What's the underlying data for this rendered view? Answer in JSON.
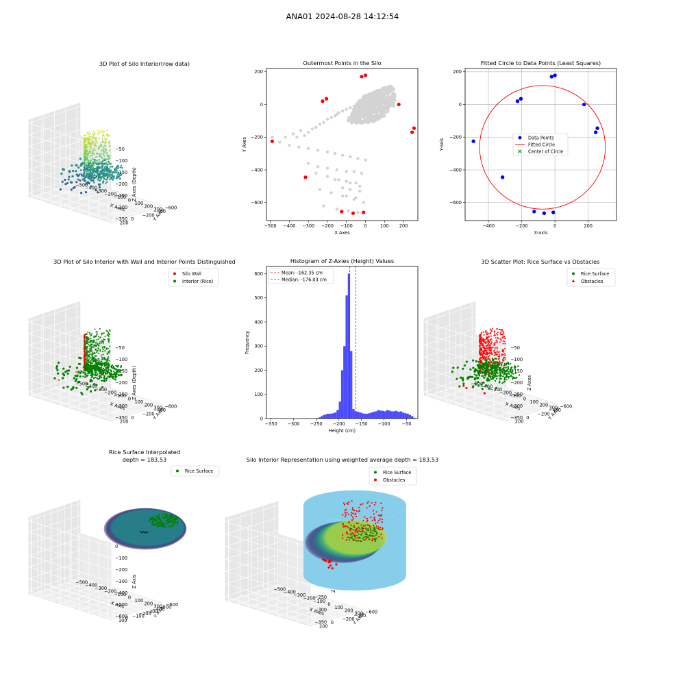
{
  "suptitle": "ANA01 2024-08-28 14:12:54",
  "colors": {
    "wall_points": "#ff0000",
    "interior_points": "#008000",
    "gray_points": "#d3d3d3",
    "blue_points": "#0000ff",
    "histogram": "#0000ff",
    "cylinder": "#87ceeb",
    "viridis_low": "#440154",
    "viridis_mid": "#21918c",
    "viridis_high": "#fde725"
  },
  "chart_data": [
    {
      "id": "raw3d",
      "type": "scatter3d",
      "title": "3D Plot of Silo Interior(row data)",
      "xlabel": "X Axes",
      "ylabel": "Y Axes",
      "zlabel": "Z Axes (Depth)",
      "xticks": [
        "−500",
        "−400",
        "−300",
        "−200",
        "−100",
        "0",
        "100",
        "200",
        "300"
      ],
      "yticks": [
        "200",
        "0",
        "−200",
        "−400",
        "−600"
      ],
      "zticks": [
        "−50",
        "−100",
        "−150",
        "−200",
        "−250",
        "−300",
        "−350"
      ],
      "colormap": "viridis",
      "xlim": [
        -500,
        300
      ],
      "ylim": [
        -650,
        220
      ],
      "zlim": [
        -370,
        -30
      ]
    },
    {
      "id": "outer",
      "type": "scatter",
      "title": "Outermost Points in the Silo",
      "xlabel": "X Axes",
      "ylabel": "Y Axes",
      "xlim": [
        -520,
        275
      ],
      "ylim": [
        -710,
        220
      ],
      "xticks": [
        -500,
        -400,
        -300,
        -200,
        -100,
        0,
        100,
        200
      ],
      "yticks": [
        200,
        0,
        -200,
        -400,
        -600
      ],
      "series": [
        {
          "role": "all points (gray)",
          "x": [
            -490,
            -450,
            -420,
            -380,
            -360,
            -340,
            -320,
            -300,
            -280,
            -260,
            -240,
            -220,
            -200,
            -180,
            -160,
            -150,
            -140,
            -120,
            -100,
            -80,
            -60,
            -40,
            -20,
            -400,
            -350,
            -300,
            -250,
            -200,
            -160,
            -120,
            -80,
            -40,
            0,
            -300,
            -250,
            -200,
            -150,
            -100,
            -60,
            -20,
            -260,
            -200,
            -140,
            -80,
            -30,
            -240,
            -180,
            -120,
            -60,
            -10,
            -220,
            -150,
            -90,
            -40,
            -160,
            -100,
            -50,
            -120,
            -80,
            -30,
            -100,
            -50
          ],
          "y": [
            -200,
            -230,
            -200,
            -180,
            -200,
            -160,
            -190,
            -170,
            -150,
            -140,
            -120,
            -110,
            -90,
            -80,
            -70,
            -60,
            -50,
            -40,
            -30,
            -20,
            -10,
            0,
            10,
            -250,
            -260,
            -270,
            -280,
            -290,
            -300,
            -310,
            -320,
            -330,
            -340,
            -360,
            -380,
            -390,
            -400,
            -410,
            -410,
            -420,
            -420,
            -440,
            -460,
            -480,
            -500,
            -520,
            -540,
            -560,
            -580,
            -600,
            -620,
            -640,
            -650,
            -660,
            -460,
            -470,
            -480,
            -510,
            -520,
            -530,
            -560,
            -570
          ]
        },
        {
          "role": "outermost points",
          "x": [
            -490,
            -315,
            -225,
            -205,
            0,
            -20,
            175,
            255,
            245,
            -10,
            -65,
            -125
          ],
          "y": [
            -225,
            -445,
            20,
            35,
            178,
            170,
            0,
            -145,
            -170,
            -660,
            -665,
            -655
          ]
        }
      ]
    },
    {
      "id": "fitcircle",
      "type": "scatter",
      "title": "Fitted Circle to Data Points (Least Squares)",
      "xlabel": "X-axis",
      "ylabel": "Y-axis",
      "xlim": [
        -540,
        370
      ],
      "ylim": [
        -710,
        220
      ],
      "xticks": [
        -400,
        -200,
        0,
        200
      ],
      "yticks": [
        200,
        0,
        -200,
        -400,
        -600
      ],
      "legend": [
        "Data Points",
        "Fitted Circle",
        "Center of Circle"
      ],
      "points": {
        "x": [
          -490,
          -315,
          -225,
          -205,
          0,
          -20,
          175,
          255,
          245,
          -10,
          -65,
          -125
        ],
        "y": [
          -225,
          -445,
          20,
          35,
          178,
          170,
          0,
          -145,
          -170,
          -660,
          -665,
          -655
        ]
      },
      "circle": {
        "cx": -75,
        "cy": -262,
        "r": 378
      }
    },
    {
      "id": "wall3d",
      "type": "scatter3d",
      "title": "3D Plot of Silo Interior with Wall and Interior Points Distinguished",
      "xlabel": "X Axes",
      "ylabel": "Y Axes",
      "zlabel": "Z Axes (Depth)",
      "legend": [
        "Silo Wall",
        "Interior (Rice)"
      ],
      "xticks": [
        "−500",
        "−400",
        "−300",
        "−200",
        "−100",
        "0",
        "100",
        "200",
        "300"
      ],
      "yticks": [
        "200",
        "0",
        "−200",
        "−400",
        "−600"
      ],
      "zticks": [
        "−50",
        "−100",
        "−150",
        "−200",
        "−250",
        "−300",
        "−350"
      ]
    },
    {
      "id": "hist",
      "type": "histogram",
      "title": "Histogram of Z-Axies (Height) Values",
      "xlabel": "Height (cm)",
      "ylabel": "Frequency",
      "xlim": [
        -360,
        -25
      ],
      "ylim": [
        0,
        630
      ],
      "xticks": [
        -350,
        -300,
        -250,
        -200,
        -150,
        -100,
        -50
      ],
      "yticks": [
        0,
        100,
        200,
        300,
        400,
        500,
        600
      ],
      "legend": [
        "Mean: -162.35 cm",
        "Median: -176.03 cm"
      ],
      "mean": -162.35,
      "median": -176.03,
      "bins": [
        -250,
        -245,
        -240,
        -235,
        -230,
        -225,
        -220,
        -215,
        -210,
        -205,
        -200,
        -195,
        -190,
        -185,
        -180,
        -175,
        -170,
        -165,
        -160,
        -155,
        -150,
        -145,
        -140,
        -135,
        -130,
        -125,
        -120,
        -115,
        -110,
        -105,
        -100,
        -95,
        -90,
        -85,
        -80,
        -75,
        -70,
        -65,
        -60,
        -55,
        -50,
        -45,
        -40,
        -35
      ],
      "values": [
        2,
        5,
        10,
        15,
        18,
        20,
        20,
        22,
        25,
        35,
        70,
        200,
        300,
        510,
        600,
        280,
        40,
        30,
        28,
        25,
        22,
        20,
        20,
        22,
        25,
        28,
        30,
        35,
        33,
        32,
        30,
        35,
        33,
        30,
        30,
        32,
        28,
        30,
        25,
        22,
        20,
        15,
        10,
        3
      ]
    },
    {
      "id": "obst3d",
      "type": "scatter3d",
      "title": "3D Scatter Plot: Rice Surface vs Obstacles",
      "xlabel": "X Axes",
      "ylabel": "Y Axes",
      "zlabel": "Z Axes",
      "legend": [
        "Rice Surface",
        "Obstacles"
      ],
      "xticks": [
        "−500",
        "−400",
        "−300",
        "−200",
        "−100",
        "0",
        "100",
        "200",
        "300"
      ],
      "yticks": [
        "200",
        "0",
        "−200",
        "−400",
        "−600"
      ],
      "zticks": [
        "−50",
        "−100",
        "−150",
        "−200",
        "−250",
        "−300",
        "−350"
      ]
    },
    {
      "id": "surf3d",
      "type": "surface3d",
      "title": "Rice Surface Interpolated",
      "subtitle": "depth = 183.53",
      "xlabel": "X Axis",
      "ylabel": "Y Axis",
      "zlabel": "Z Axis",
      "legend": [
        "Rice Surface"
      ],
      "xticks": [
        "−500",
        "−400",
        "−300",
        "−200",
        "−100",
        "0",
        "100",
        "200",
        "300"
      ],
      "yticks": [
        "100",
        "0",
        "−100",
        "−200",
        "−300",
        "−400",
        "−500",
        "−600"
      ],
      "zticks": [
        "0",
        "−100",
        "−200",
        "−300",
        "−400",
        "−500",
        "−600"
      ]
    },
    {
      "id": "silo3d",
      "type": "surface3d",
      "title": "Silo Interior Representation using weighted average depth = 183.53",
      "xlabel": "X Axes",
      "ylabel": "Y Axes",
      "zlabel": "Z Axes",
      "legend": [
        "Rice Surface",
        "Obstacles"
      ],
      "xticks": [
        "−500",
        "−400",
        "−300",
        "−200",
        "−100",
        "0",
        "100",
        "200",
        "300"
      ],
      "yticks": [
        "200",
        "0",
        "−200",
        "−400",
        "−600"
      ],
      "zticks": [
        "−50",
        "−100",
        "−150",
        "−200",
        "−250",
        "−300",
        "−350"
      ]
    }
  ]
}
